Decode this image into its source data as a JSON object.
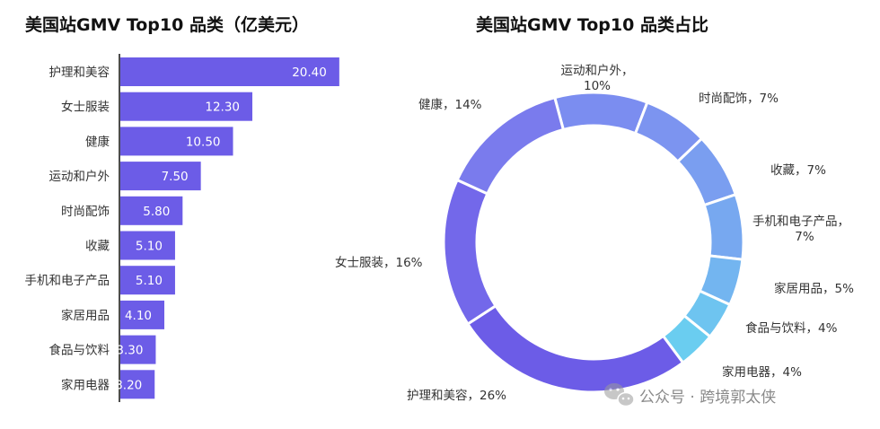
{
  "chart_data": [
    {
      "type": "bar",
      "orientation": "horizontal",
      "title": "美国站GMV Top10 品类（亿美元）",
      "categories": [
        "护理和美容",
        "女士服装",
        "健康",
        "运动和户外",
        "时尚配饰",
        "收藏",
        "手机和电子产品",
        "家居用品",
        "食品与饮料",
        "家用电器"
      ],
      "values": [
        20.4,
        12.3,
        10.5,
        7.5,
        5.8,
        5.1,
        5.1,
        4.1,
        3.3,
        3.2
      ],
      "value_labels": [
        "20.40",
        "12.30",
        "10.50",
        "7.50",
        "5.80",
        "5.10",
        "5.10",
        "4.10",
        "3.30",
        "3.20"
      ],
      "xlim": [
        0,
        21.5
      ],
      "bar_color": "#6c5ce7",
      "grid": false
    },
    {
      "type": "pie",
      "style": "donut",
      "title": "美国站GMV Top10 品类占比",
      "slices": [
        {
          "label": "运动和户外，10%",
          "value": 10,
          "color": "#7b8df0"
        },
        {
          "label": "时尚配饰，7%",
          "value": 7,
          "color": "#7c94f0"
        },
        {
          "label": "收藏，7%",
          "value": 7,
          "color": "#7a9ef0"
        },
        {
          "label": "手机和电子产品，7%",
          "value": 7,
          "color": "#77a8f0"
        },
        {
          "label": "家居用品，5%",
          "value": 5,
          "color": "#73b5f0"
        },
        {
          "label": "食品与饮料，4%",
          "value": 4,
          "color": "#6ec4f0"
        },
        {
          "label": "家用电器，4%",
          "value": 4,
          "color": "#6acdf0"
        },
        {
          "label": "护理和美容，26%",
          "value": 26,
          "color": "#6c5ce7"
        },
        {
          "label": "女士服装，16%",
          "value": 16,
          "color": "#7368ea"
        },
        {
          "label": "健康，14%",
          "value": 14,
          "color": "#7a7bed"
        }
      ]
    }
  ],
  "watermark": {
    "icon": "wechat-icon",
    "text": "公众号 · 跨境郭太侠"
  }
}
